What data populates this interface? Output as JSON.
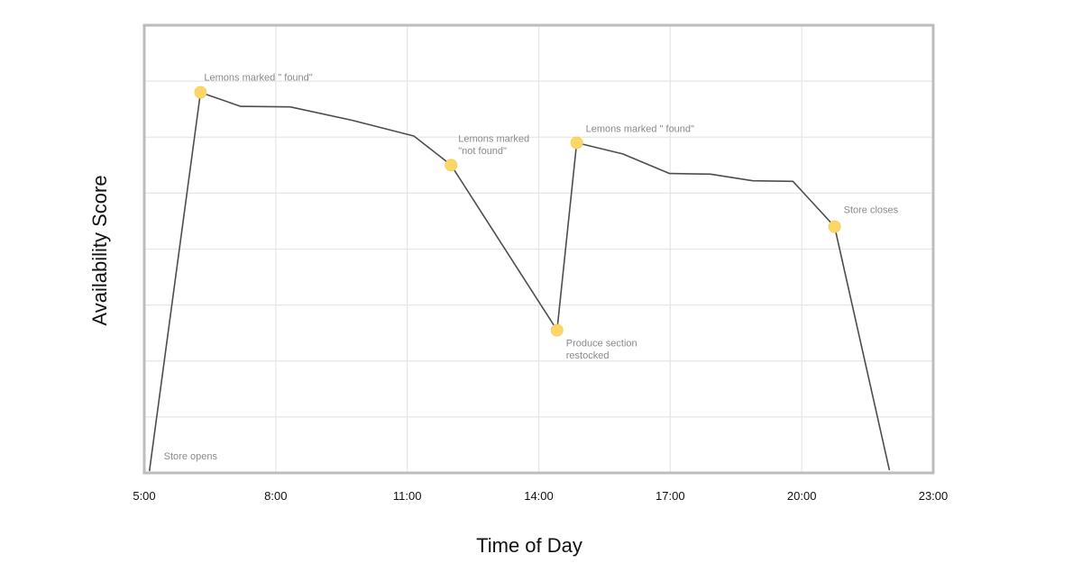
{
  "chart_data": {
    "type": "line",
    "title": "",
    "xlabel": "Time of Day",
    "ylabel": "Availability Score",
    "grid": true,
    "x_ticks": [
      "5:00",
      "8:00",
      "11:00",
      "14:00",
      "17:00",
      "20:00",
      "23:00"
    ],
    "xlim": [
      "5:00",
      "23:00"
    ],
    "ylim": [
      0,
      8
    ],
    "series": [
      {
        "points": [
          {
            "x": "5:07",
            "y": 0.0
          },
          {
            "x": "6:17",
            "y": 6.8
          },
          {
            "x": "7:12",
            "y": 6.55
          },
          {
            "x": "8:20",
            "y": 6.54
          },
          {
            "x": "9:45",
            "y": 6.3
          },
          {
            "x": "11:09",
            "y": 6.02
          },
          {
            "x": "12:00",
            "y": 5.5
          },
          {
            "x": "14:25",
            "y": 2.55
          },
          {
            "x": "14:52",
            "y": 5.9
          },
          {
            "x": "15:55",
            "y": 5.7
          },
          {
            "x": "16:59",
            "y": 5.35
          },
          {
            "x": "17:55",
            "y": 5.34
          },
          {
            "x": "18:53",
            "y": 5.22
          },
          {
            "x": "19:48",
            "y": 5.21
          },
          {
            "x": "20:45",
            "y": 4.4
          },
          {
            "x": "22:00",
            "y": 0.05
          }
        ]
      }
    ],
    "annotations": [
      {
        "x": "6:17",
        "y": 6.8,
        "marker": true,
        "lines": [
          "Lemons marked \" found\""
        ]
      },
      {
        "x": "12:00",
        "y": 5.5,
        "marker": true,
        "lines": [
          "Lemons marked",
          "\"not found\""
        ]
      },
      {
        "x": "14:25",
        "y": 2.55,
        "marker": true,
        "lines": [
          "Produce section",
          "restocked"
        ]
      },
      {
        "x": "14:52",
        "y": 5.9,
        "marker": true,
        "lines": [
          "Lemons marked \" found\""
        ]
      },
      {
        "x": "20:45",
        "y": 4.4,
        "marker": true,
        "lines": [
          "Store closes"
        ]
      },
      {
        "x": "5:07",
        "y": 0.0,
        "marker": false,
        "lines": [
          "Store opens"
        ]
      }
    ],
    "colors": {
      "line": "#4d4d4d",
      "marker": "#fdd669",
      "frame": "#bdbdbd",
      "grid": "#e6e6e6"
    }
  }
}
